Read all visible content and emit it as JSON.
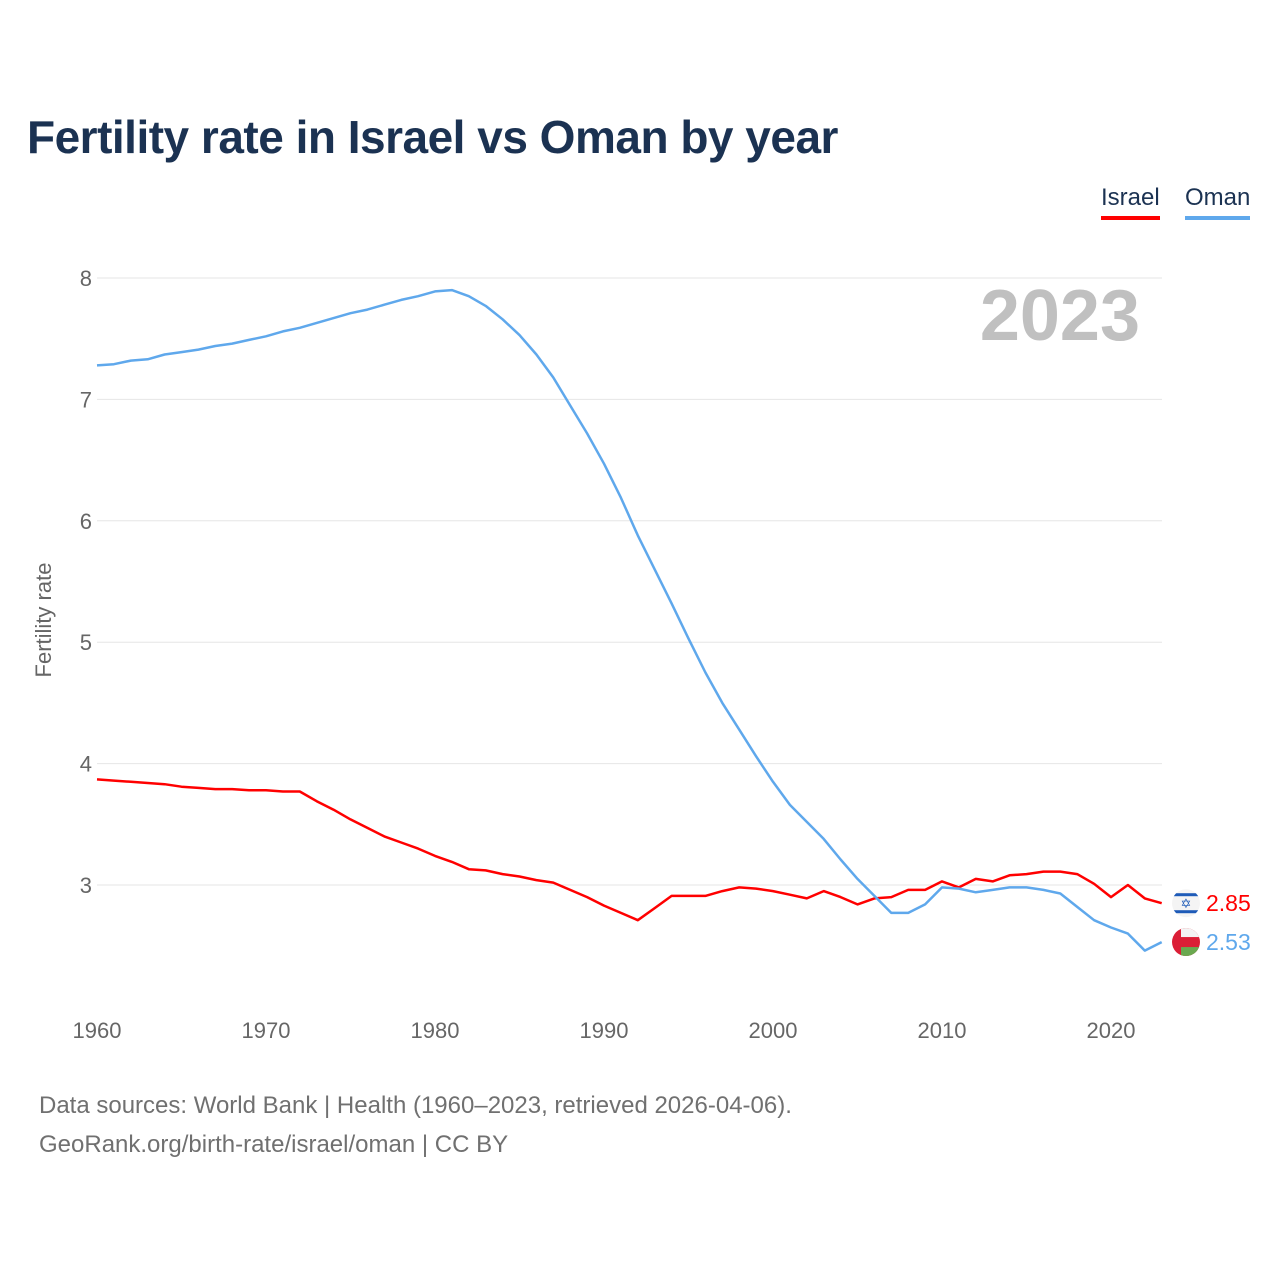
{
  "chart_data": {
    "type": "line",
    "title": "Fertility rate in Israel vs Oman by year",
    "xlabel": "",
    "ylabel": "Fertility rate",
    "xlim": [
      1960,
      2023
    ],
    "ylim": [
      2,
      8.2
    ],
    "yticks": [
      "3",
      "4",
      "5",
      "6",
      "7",
      "8"
    ],
    "xticks": [
      "1960",
      "1970",
      "1980",
      "1990",
      "2000",
      "2010",
      "2020"
    ],
    "grid": true,
    "legend_position": "top-right",
    "year_watermark": "2023",
    "x": [
      1960,
      1961,
      1962,
      1963,
      1964,
      1965,
      1966,
      1967,
      1968,
      1969,
      1970,
      1971,
      1972,
      1973,
      1974,
      1975,
      1976,
      1977,
      1978,
      1979,
      1980,
      1981,
      1982,
      1983,
      1984,
      1985,
      1986,
      1987,
      1988,
      1989,
      1990,
      1991,
      1992,
      1993,
      1994,
      1995,
      1996,
      1997,
      1998,
      1999,
      2000,
      2001,
      2002,
      2003,
      2004,
      2005,
      2006,
      2007,
      2008,
      2009,
      2010,
      2011,
      2012,
      2013,
      2014,
      2015,
      2016,
      2017,
      2018,
      2019,
      2020,
      2021,
      2022,
      2023
    ],
    "series": [
      {
        "name": "Israel",
        "color": "#ff0000",
        "end_label": "2.85",
        "flag": "israel-flag",
        "values": [
          3.87,
          3.86,
          3.85,
          3.84,
          3.83,
          3.81,
          3.8,
          3.79,
          3.79,
          3.78,
          3.78,
          3.77,
          3.77,
          3.69,
          3.62,
          3.54,
          3.47,
          3.4,
          3.35,
          3.3,
          3.24,
          3.19,
          3.13,
          3.12,
          3.09,
          3.07,
          3.04,
          3.02,
          2.96,
          2.9,
          2.83,
          2.77,
          2.71,
          2.81,
          2.91,
          2.91,
          2.91,
          2.95,
          2.98,
          2.97,
          2.95,
          2.92,
          2.89,
          2.95,
          2.9,
          2.84,
          2.89,
          2.9,
          2.96,
          2.96,
          3.03,
          2.98,
          3.05,
          3.03,
          3.08,
          3.09,
          3.11,
          3.11,
          3.09,
          3.01,
          2.9,
          3.0,
          2.89,
          2.85
        ]
      },
      {
        "name": "Oman",
        "color": "#5fa8ec",
        "end_label": "2.53",
        "flag": "oman-flag",
        "values": [
          7.28,
          7.29,
          7.32,
          7.33,
          7.37,
          7.39,
          7.41,
          7.44,
          7.46,
          7.49,
          7.52,
          7.56,
          7.59,
          7.63,
          7.67,
          7.71,
          7.74,
          7.78,
          7.82,
          7.85,
          7.89,
          7.9,
          7.85,
          7.77,
          7.66,
          7.53,
          7.37,
          7.18,
          6.95,
          6.72,
          6.47,
          6.19,
          5.88,
          5.6,
          5.32,
          5.03,
          4.75,
          4.5,
          4.28,
          4.06,
          3.85,
          3.66,
          3.52,
          3.38,
          3.21,
          3.05,
          2.91,
          2.77,
          2.77,
          2.84,
          2.98,
          2.97,
          2.94,
          2.96,
          2.98,
          2.98,
          2.96,
          2.93,
          2.82,
          2.71,
          2.65,
          2.6,
          2.46,
          2.53
        ]
      }
    ]
  },
  "footer": {
    "line1": "Data sources: World Bank | Health (1960–2023, retrieved 2026-04-06).",
    "line2": "GeoRank.org/birth-rate/israel/oman | CC BY"
  }
}
